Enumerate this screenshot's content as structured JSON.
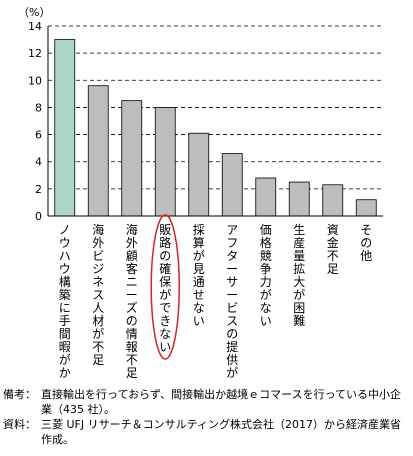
{
  "chart_data": {
    "type": "bar",
    "unit_label": "（%）",
    "categories": [
      "ノウハウ構築に手間暇がかかる",
      "海外ビジネス人材が不足",
      "海外顧客ニーズの情報不足",
      "販路の確保ができない",
      "採算が見通せない",
      "アフターサービスの提供が困難",
      "価格競争力がない",
      "生産量拡大が困難",
      "資金不足",
      "その他"
    ],
    "values": [
      13.0,
      9.6,
      8.5,
      8.0,
      6.1,
      4.6,
      2.8,
      2.5,
      2.3,
      1.2
    ],
    "highlight_index": 0,
    "circled_index": 3,
    "ylim": [
      0,
      14
    ],
    "yticks": [
      "0",
      "2",
      "4",
      "6",
      "8",
      "10",
      "12",
      "14"
    ],
    "grid": "dashed-horizontal",
    "colors": {
      "highlight_bar": "#a9d6c9",
      "bar": "#bdbdbd",
      "circle": "#d9241a",
      "grid": "#000000"
    }
  },
  "notes": [
    {
      "label": "備考：",
      "text": "直接輸出を行っておらず、間接輸出か越境ｅコマースを行っている中小企業（435 社）。"
    },
    {
      "label": "資料：",
      "text": "三菱 UFJ リサーチ＆コンサルティング株式会社（2017）から経済産業省作成。"
    }
  ]
}
